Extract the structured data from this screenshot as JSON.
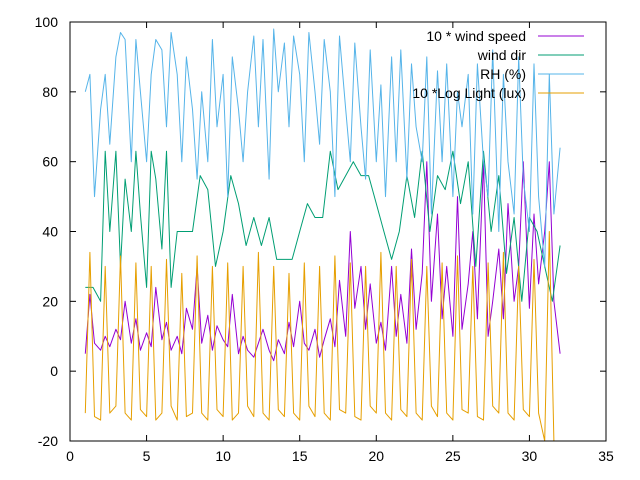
{
  "chart_data": {
    "type": "line",
    "title": "",
    "xlabel": "",
    "ylabel": "",
    "xlim": [
      0,
      35
    ],
    "ylim": [
      -20,
      100
    ],
    "xticks": [
      0,
      5,
      10,
      15,
      20,
      25,
      30,
      35
    ],
    "yticks": [
      -20,
      0,
      20,
      40,
      60,
      80,
      100
    ],
    "grid": false,
    "legend_position": "top-right",
    "series": [
      {
        "name": "10 * wind speed",
        "color": "#9400d3",
        "x": [
          1.0,
          1.3,
          1.6,
          2.0,
          2.3,
          2.6,
          3.0,
          3.3,
          3.6,
          4.0,
          4.3,
          4.6,
          5.0,
          5.3,
          5.6,
          6.0,
          6.3,
          6.6,
          7.0,
          7.3,
          7.6,
          8.0,
          8.3,
          8.6,
          9.0,
          9.3,
          9.6,
          10.0,
          10.3,
          10.6,
          11.0,
          11.3,
          11.6,
          12.0,
          12.3,
          12.6,
          13.0,
          13.3,
          13.6,
          14.0,
          14.3,
          14.6,
          15.0,
          15.3,
          15.6,
          16.0,
          16.3,
          16.6,
          17.0,
          17.3,
          17.6,
          18.0,
          18.3,
          18.6,
          19.0,
          19.3,
          19.6,
          20.0,
          20.3,
          20.6,
          21.0,
          21.3,
          21.6,
          22.0,
          22.3,
          22.6,
          23.0,
          23.3,
          23.6,
          24.0,
          24.3,
          24.6,
          25.0,
          25.3,
          25.6,
          26.0,
          26.3,
          26.6,
          27.0,
          27.3,
          27.6,
          28.0,
          28.3,
          28.6,
          29.0,
          29.3,
          29.6,
          30.0,
          30.3,
          30.6,
          31.0,
          31.3,
          31.6,
          32.0
        ],
        "y": [
          5,
          22,
          8,
          6,
          10,
          7,
          12,
          9,
          20,
          8,
          15,
          6,
          11,
          7,
          24,
          9,
          14,
          6,
          10,
          5,
          18,
          12,
          30,
          8,
          16,
          6,
          13,
          9,
          7,
          22,
          5,
          10,
          6,
          4,
          8,
          12,
          6,
          3,
          9,
          5,
          14,
          7,
          20,
          8,
          6,
          12,
          4,
          9,
          15,
          7,
          26,
          10,
          40,
          18,
          30,
          12,
          25,
          8,
          14,
          6,
          30,
          10,
          22,
          8,
          35,
          12,
          28,
          60,
          20,
          45,
          15,
          30,
          10,
          50,
          12,
          25,
          40,
          15,
          60,
          10,
          20,
          35,
          15,
          48,
          20,
          30,
          60,
          18,
          45,
          25,
          40,
          60,
          20,
          5
        ]
      },
      {
        "name": "wind dir",
        "color": "#009e73",
        "x": [
          1.0,
          1.5,
          2.0,
          2.3,
          2.6,
          3.0,
          3.3,
          3.6,
          4.0,
          4.3,
          4.6,
          5.0,
          5.3,
          5.6,
          6.0,
          6.3,
          6.6,
          7.0,
          7.5,
          8.0,
          8.5,
          9.0,
          9.5,
          10.0,
          10.5,
          11.0,
          11.5,
          12.0,
          12.5,
          13.0,
          13.5,
          14.0,
          14.5,
          15.0,
          15.5,
          16.0,
          16.5,
          17.0,
          17.5,
          18.0,
          18.5,
          19.0,
          19.5,
          20.0,
          20.5,
          21.0,
          21.5,
          22.0,
          22.5,
          23.0,
          23.5,
          24.0,
          24.5,
          25.0,
          25.5,
          26.0,
          26.5,
          27.0,
          27.5,
          28.0,
          28.5,
          29.0,
          29.5,
          30.0,
          30.5,
          31.0,
          31.5,
          32.0
        ],
        "y": [
          24,
          24,
          20,
          63,
          40,
          63,
          30,
          55,
          40,
          63,
          45,
          24,
          63,
          55,
          35,
          63,
          24,
          40,
          40,
          40,
          56,
          52,
          30,
          40,
          56,
          48,
          36,
          44,
          36,
          44,
          32,
          32,
          32,
          40,
          48,
          44,
          44,
          63,
          52,
          56,
          60,
          56,
          56,
          48,
          40,
          32,
          40,
          56,
          44,
          63,
          40,
          56,
          52,
          63,
          48,
          60,
          30,
          63,
          40,
          56,
          28,
          44,
          20,
          44,
          40,
          30,
          20,
          36
        ]
      },
      {
        "name": "RH (%)",
        "color": "#56b4e9",
        "x": [
          1.0,
          1.3,
          1.6,
          2.0,
          2.3,
          2.6,
          3.0,
          3.3,
          3.6,
          4.0,
          4.3,
          4.6,
          5.0,
          5.3,
          5.6,
          6.0,
          6.3,
          6.6,
          7.0,
          7.3,
          7.6,
          8.0,
          8.3,
          8.6,
          9.0,
          9.3,
          9.6,
          10.0,
          10.3,
          10.6,
          11.0,
          11.3,
          11.6,
          12.0,
          12.3,
          12.6,
          13.0,
          13.3,
          13.6,
          14.0,
          14.3,
          14.6,
          15.0,
          15.3,
          15.6,
          16.0,
          16.3,
          16.6,
          17.0,
          17.3,
          17.6,
          18.0,
          18.3,
          18.6,
          19.0,
          19.3,
          19.6,
          20.0,
          20.3,
          20.6,
          21.0,
          21.3,
          21.6,
          22.0,
          22.3,
          22.6,
          23.0,
          23.3,
          23.6,
          24.0,
          24.3,
          24.6,
          25.0,
          25.3,
          25.6,
          26.0,
          26.3,
          26.6,
          27.0,
          27.3,
          27.6,
          28.0,
          28.3,
          28.6,
          29.0,
          29.3,
          29.6,
          30.0,
          30.3,
          30.6,
          31.0,
          31.3,
          31.6,
          32.0
        ],
        "y": [
          80,
          85,
          50,
          75,
          85,
          65,
          90,
          97,
          95,
          60,
          95,
          80,
          60,
          85,
          95,
          92,
          70,
          97,
          85,
          60,
          90,
          75,
          55,
          80,
          60,
          95,
          70,
          85,
          50,
          90,
          75,
          60,
          80,
          96,
          70,
          95,
          55,
          98,
          80,
          94,
          70,
          96,
          85,
          60,
          97,
          80,
          65,
          95,
          80,
          50,
          96,
          75,
          60,
          94,
          70,
          55,
          92,
          60,
          82,
          50,
          90,
          60,
          92,
          55,
          88,
          70,
          60,
          90,
          45,
          86,
          60,
          88,
          50,
          80,
          70,
          85,
          45,
          88,
          60,
          50,
          92,
          40,
          85,
          60,
          45,
          90,
          55,
          40,
          88,
          50,
          30,
          85,
          45,
          64
        ]
      },
      {
        "name": "10 *Log Light (lux)",
        "color": "#e69f00",
        "x": [
          1.0,
          1.3,
          1.6,
          2.0,
          2.3,
          2.6,
          3.0,
          3.3,
          3.6,
          4.0,
          4.3,
          4.6,
          5.0,
          5.3,
          5.6,
          6.0,
          6.3,
          6.6,
          7.0,
          7.3,
          7.6,
          8.0,
          8.3,
          8.6,
          9.0,
          9.3,
          9.6,
          10.0,
          10.3,
          10.6,
          11.0,
          11.3,
          11.6,
          12.0,
          12.3,
          12.6,
          13.0,
          13.3,
          13.6,
          14.0,
          14.3,
          14.6,
          15.0,
          15.3,
          15.6,
          16.0,
          16.3,
          16.6,
          17.0,
          17.3,
          17.6,
          18.0,
          18.3,
          18.6,
          19.0,
          19.3,
          19.6,
          20.0,
          20.3,
          20.6,
          21.0,
          21.3,
          21.6,
          22.0,
          22.3,
          22.6,
          23.0,
          23.3,
          23.6,
          24.0,
          24.3,
          24.6,
          25.0,
          25.3,
          25.6,
          26.0,
          26.3,
          26.6,
          27.0,
          27.3,
          27.6,
          28.0,
          28.3,
          28.6,
          29.0,
          29.3,
          29.6,
          30.0,
          30.3,
          30.6,
          31.0,
          31.3,
          31.6,
          32.0
        ],
        "y": [
          -12,
          34,
          -13,
          -14,
          30,
          -12,
          -10,
          33,
          -12,
          -14,
          31,
          -11,
          -13,
          30,
          -14,
          -12,
          32,
          -10,
          -14,
          28,
          -13,
          -12,
          33,
          -12,
          -14,
          30,
          -11,
          -13,
          31,
          -14,
          -12,
          30,
          -10,
          -13,
          34,
          -12,
          -14,
          30,
          -11,
          -13,
          28,
          -12,
          -14,
          31,
          -10,
          -13,
          30,
          -12,
          -14,
          33,
          -11,
          -12,
          31,
          -13,
          -14,
          30,
          -10,
          -12,
          34,
          -12,
          -14,
          30,
          -11,
          -13,
          32,
          -12,
          -14,
          30,
          -10,
          -13,
          31,
          -12,
          -14,
          33,
          -11,
          -12,
          30,
          -13,
          -14,
          31,
          -10,
          -12,
          34,
          -12,
          -14,
          30,
          -11,
          -13,
          32,
          -12,
          -20,
          40,
          -20,
          -20
        ]
      }
    ]
  }
}
